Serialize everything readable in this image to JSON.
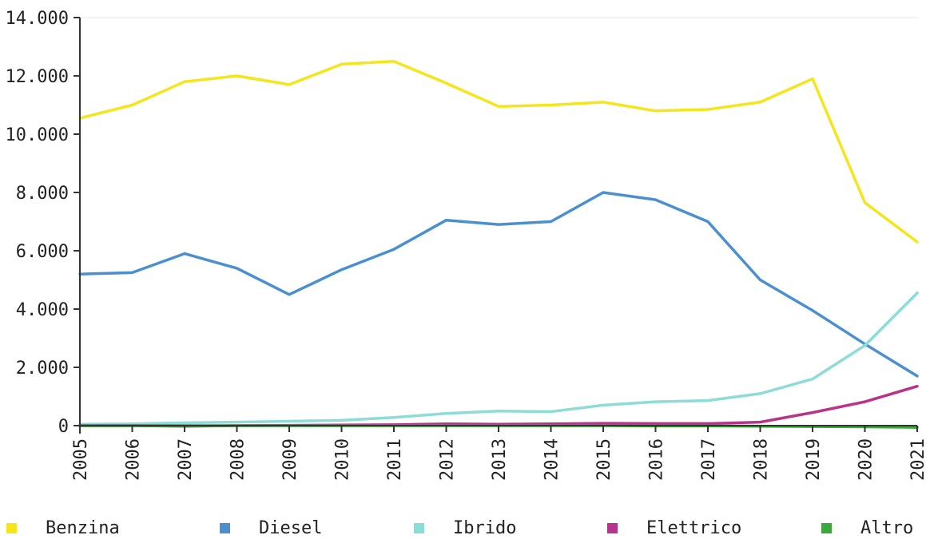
{
  "chart_data": {
    "type": "line",
    "x": [
      "2005",
      "2006",
      "2007",
      "2008",
      "2009",
      "2010",
      "2011",
      "2012",
      "2013",
      "2014",
      "2015",
      "2016",
      "2017",
      "2018",
      "2019",
      "2020",
      "2021"
    ],
    "ylim": [
      0,
      14000
    ],
    "yticks": [
      {
        "value": 0,
        "label": "0"
      },
      {
        "value": 2000,
        "label": "2.000"
      },
      {
        "value": 4000,
        "label": "4.000"
      },
      {
        "value": 6000,
        "label": "6.000"
      },
      {
        "value": 8000,
        "label": "8.000"
      },
      {
        "value": 10000,
        "label": "10.000"
      },
      {
        "value": 12000,
        "label": "12.000"
      },
      {
        "value": 14000,
        "label": "14.000"
      }
    ],
    "grid": false,
    "legend_position": "bottom",
    "series": [
      {
        "name": "Benzina",
        "color": "#f5e51b",
        "values": [
          10550,
          11000,
          11800,
          12000,
          11700,
          12400,
          12500,
          11750,
          10950,
          11000,
          11100,
          10800,
          10850,
          11100,
          11900,
          7650,
          6300
        ]
      },
      {
        "name": "Diesel",
        "color": "#4a8fd0",
        "values": [
          5200,
          5250,
          5900,
          5400,
          4500,
          5350,
          6050,
          7050,
          6900,
          7000,
          8000,
          7750,
          7000,
          5000,
          3950,
          2800,
          1700
        ]
      },
      {
        "name": "Ibrido",
        "color": "#8ddcd6",
        "values": [
          50,
          60,
          100,
          120,
          150,
          180,
          280,
          420,
          500,
          480,
          700,
          820,
          860,
          1100,
          1600,
          2750,
          4550
        ]
      },
      {
        "name": "Elettrico",
        "color": "#b8338a",
        "values": [
          0,
          0,
          -20,
          0,
          10,
          20,
          30,
          60,
          50,
          60,
          80,
          70,
          70,
          120,
          450,
          820,
          1350
        ]
      },
      {
        "name": "Altro",
        "color": "#3aa83a",
        "values": [
          0,
          0,
          0,
          0,
          0,
          0,
          0,
          0,
          0,
          0,
          0,
          -10,
          -10,
          -20,
          -30,
          -40,
          -60
        ]
      }
    ]
  }
}
